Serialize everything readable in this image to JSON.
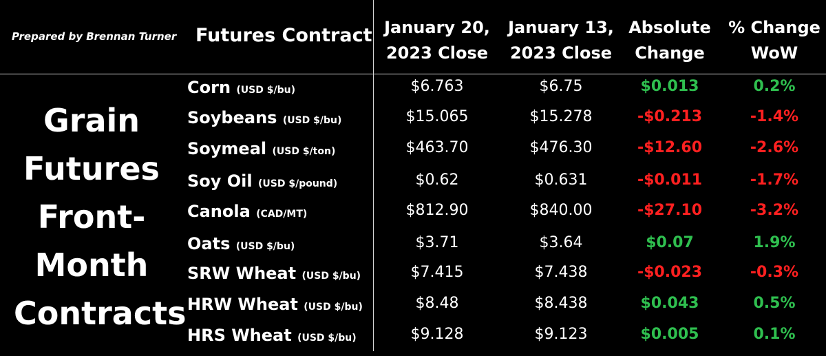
{
  "prepared_by": "Prepared by Brennan Turner",
  "side_title": [
    "Grain",
    "Futures",
    "Front-",
    "Month",
    "Contracts"
  ],
  "headers": {
    "contract": "Futures Contract",
    "jan20": [
      "January 20,",
      "2023 Close"
    ],
    "jan13": [
      "January 13,",
      "2023 Close"
    ],
    "abs": [
      "Absolute",
      "Change"
    ],
    "pct": [
      "% Change",
      "WoW"
    ]
  },
  "colors": {
    "positive": "#2fbf4f",
    "negative": "#ff2020",
    "background": "#000000",
    "text": "#ffffff"
  },
  "rows": [
    {
      "name": "Corn",
      "unit": "(USD $/bu)",
      "jan20": "$6.763",
      "jan13": "$6.75",
      "abs": "$0.013",
      "pct": "0.2%",
      "dir": "pos"
    },
    {
      "name": "Soybeans",
      "unit": "(USD $/bu)",
      "jan20": "$15.065",
      "jan13": "$15.278",
      "abs": "-$0.213",
      "pct": "-1.4%",
      "dir": "neg"
    },
    {
      "name": "Soymeal",
      "unit": "(USD $/ton)",
      "jan20": "$463.70",
      "jan13": "$476.30",
      "abs": "-$12.60",
      "pct": "-2.6%",
      "dir": "neg"
    },
    {
      "name": "Soy Oil",
      "unit": "(USD $/pound)",
      "jan20": "$0.62",
      "jan13": "$0.631",
      "abs": "-$0.011",
      "pct": "-1.7%",
      "dir": "neg"
    },
    {
      "name": "Canola",
      "unit": "(CAD/MT)",
      "jan20": "$812.90",
      "jan13": "$840.00",
      "abs": "-$27.10",
      "pct": "-3.2%",
      "dir": "neg"
    },
    {
      "name": "Oats",
      "unit": "(USD $/bu)",
      "jan20": "$3.71",
      "jan13": "$3.64",
      "abs": "$0.07",
      "pct": "1.9%",
      "dir": "pos"
    },
    {
      "name": "SRW Wheat",
      "unit": "(USD $/bu)",
      "jan20": "$7.415",
      "jan13": "$7.438",
      "abs": "-$0.023",
      "pct": "-0.3%",
      "dir": "neg"
    },
    {
      "name": "HRW Wheat",
      "unit": "(USD $/bu)",
      "jan20": "$8.48",
      "jan13": "$8.438",
      "abs": "$0.043",
      "pct": "0.5%",
      "dir": "pos"
    },
    {
      "name": "HRS Wheat",
      "unit": "(USD $/bu)",
      "jan20": "$9.128",
      "jan13": "$9.123",
      "abs": "$0.005",
      "pct": "0.1%",
      "dir": "pos"
    }
  ]
}
